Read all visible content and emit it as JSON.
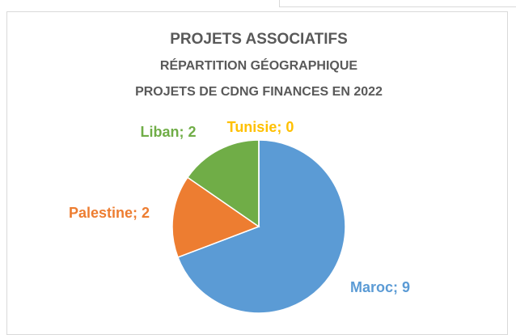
{
  "chart_data": {
    "type": "pie",
    "title": [
      "PROJETS ASSOCIATIFS",
      "RÉPARTITION GÉOGRAPHIQUE",
      "PROJETS DE CDNG FINANCES EN 2022"
    ],
    "categories": [
      "Maroc",
      "Palestine",
      "Liban",
      "Tunisie"
    ],
    "values": [
      9,
      2,
      2,
      0
    ],
    "value_labels": [
      "Maroc; 9",
      "Palestine; 2",
      "Liban; 2",
      "Tunisie; 0"
    ],
    "colors": [
      "#5b9bd5",
      "#ed7d31",
      "#70ad47",
      "#ffc000"
    ]
  }
}
